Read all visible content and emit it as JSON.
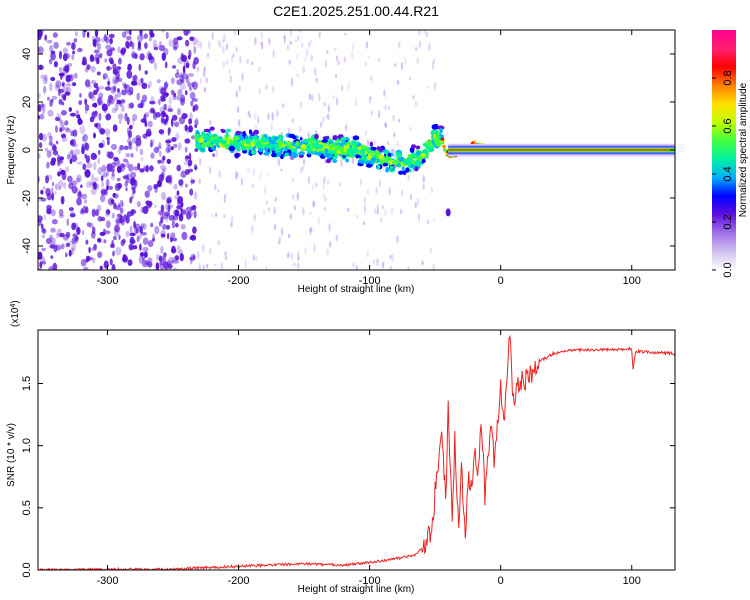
{
  "figure_title": "C2E1.2025.251.00.44.R21",
  "colors": {
    "spec_dot": "#5a14d8",
    "snr_line": "#ee2222",
    "frame": "#000000",
    "colorbar": [
      "#ffffff",
      "#cfc0f0",
      "#a070e8",
      "#6010e0",
      "#0000ff",
      "#00b0ff",
      "#00f0a0",
      "#40ff40",
      "#c0ff00",
      "#ffe000",
      "#ff8000",
      "#ff0000",
      "#ff2070",
      "#ff0090"
    ]
  },
  "chart_data": [
    {
      "type": "heatmap",
      "title": "C2E1.2025.251.00.44.R21",
      "xlabel": "Height of straight line (km)",
      "ylabel": "Frequency (Hz)",
      "xlim": [
        -353,
        133
      ],
      "ylim": [
        -50,
        50
      ],
      "x_ticks": [
        -300,
        -200,
        -100,
        0,
        100
      ],
      "y_ticks": [
        -40,
        -20,
        0,
        20,
        40
      ],
      "grid": false,
      "colorbar": {
        "label": "Normalized spectral amplitude",
        "range": [
          0,
          1
        ],
        "ticks": [
          "0.0",
          "0.2",
          "0.4",
          "0.6",
          "0.8"
        ]
      },
      "regions": [
        {
          "description": "noise",
          "x_range": [
            -353,
            -232
          ],
          "freq_range": [
            -50,
            50
          ],
          "amplitude": 0.2
        },
        {
          "description": "weak streaks",
          "x_range": [
            -232,
            -50
          ],
          "freq_range": [
            -50,
            50
          ],
          "amplitude": 0.05
        },
        {
          "description": "signal band",
          "x_range": [
            -232,
            -45
          ],
          "freq_center": [
            4,
            3,
            2,
            0,
            -3,
            -6,
            -3,
            6
          ],
          "amplitude": 0.35
        },
        {
          "description": "locked tone",
          "x_range": [
            -40,
            133
          ],
          "freq": 0,
          "amplitude": 1.0
        }
      ],
      "ridge": {
        "x": [
          -232,
          -200,
          -170,
          -140,
          -110,
          -90,
          -75,
          -60,
          -50,
          -45,
          -40,
          -30,
          -20,
          -10,
          0,
          10,
          133
        ],
        "freq": [
          4,
          3,
          2,
          1,
          0,
          -4,
          -6,
          -3,
          6,
          4,
          -2,
          0,
          2,
          0,
          0,
          0,
          0
        ]
      },
      "outlier": {
        "x": -40,
        "freq": -26
      }
    },
    {
      "type": "line",
      "xlabel": "Height of straight line (km)",
      "ylabel": "SNR (10 * v/v)",
      "y_scale_label": "(x10^4)",
      "y_scale_base": "(x10",
      "y_scale_exp": "4",
      "xlim": [
        -353,
        133
      ],
      "ylim": [
        0,
        1.93
      ],
      "x_ticks": [
        -300,
        -200,
        -100,
        0,
        100
      ],
      "y_ticks": [
        "0.0",
        "0.5",
        "1.0",
        "1.5"
      ],
      "y_tick_values": [
        0,
        0.5,
        1.0,
        1.5
      ],
      "grid": false,
      "series": [
        {
          "x": [
            -353,
            -300,
            -250,
            -225,
            -200,
            -150,
            -120,
            -100,
            -80,
            -65,
            -58,
            -52,
            -50,
            -47,
            -45,
            -42,
            -40,
            -37,
            -35,
            -32,
            -30,
            -27,
            -25,
            -22,
            -20,
            -17,
            -15,
            -12,
            -10,
            -7,
            -5,
            -2,
            0,
            3,
            5,
            7,
            9,
            12,
            15,
            20,
            25,
            30,
            40,
            50,
            60,
            80,
            100,
            101,
            103,
            115,
            133
          ],
          "y": [
            0.0,
            0.005,
            0.005,
            0.02,
            0.03,
            0.05,
            0.04,
            0.06,
            0.09,
            0.12,
            0.2,
            0.35,
            0.65,
            0.9,
            1.2,
            0.55,
            1.28,
            0.4,
            1.05,
            0.3,
            0.85,
            0.25,
            0.7,
            0.72,
            0.95,
            0.8,
            1.25,
            0.6,
            0.9,
            1.2,
            0.9,
            1.25,
            1.45,
            1.25,
            1.55,
            1.92,
            1.35,
            1.45,
            1.5,
            1.55,
            1.6,
            1.68,
            1.74,
            1.76,
            1.77,
            1.77,
            1.78,
            1.62,
            1.76,
            1.75,
            1.74
          ]
        }
      ]
    }
  ]
}
